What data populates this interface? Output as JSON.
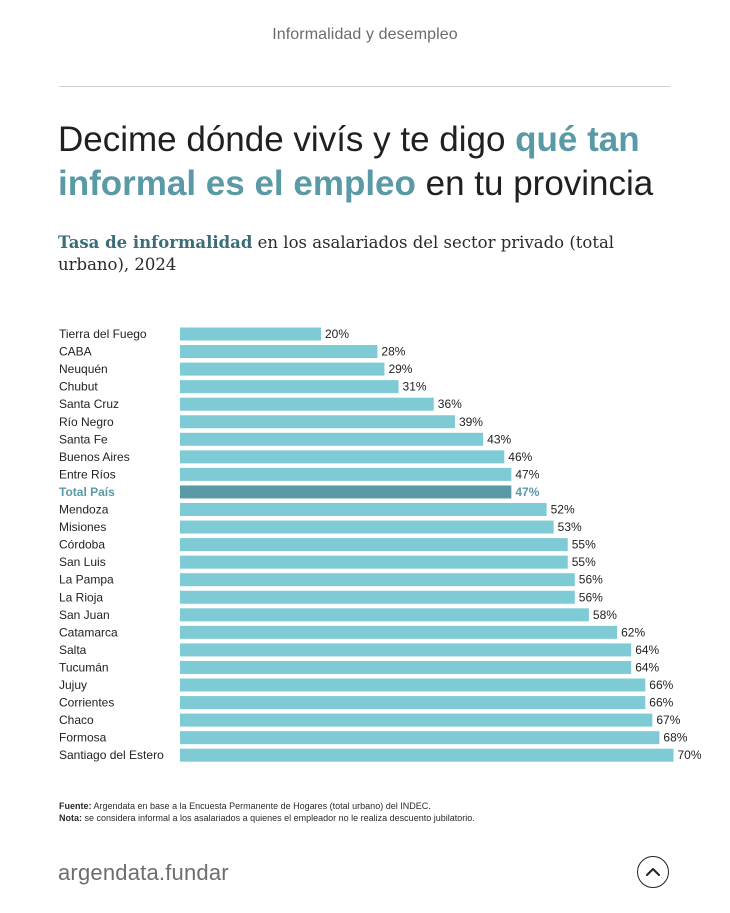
{
  "header": {
    "section": "Informalidad y desempleo"
  },
  "headline": {
    "part1": "Decime dónde vivís y te digo ",
    "highlight": "qué tan informal es el empleo",
    "part2": " en tu provincia"
  },
  "subtitle": {
    "strong": "Tasa de informalidad",
    "rest": " en los asalariados del sector privado (total urbano), 2024"
  },
  "chart_data": {
    "type": "bar",
    "orientation": "horizontal",
    "categories": [
      "Tierra del Fuego",
      "CABA",
      "Neuquén",
      "Chubut",
      "Santa Cruz",
      "Río Negro",
      "Santa Fe",
      "Buenos Aires",
      "Entre Ríos",
      "Total País",
      "Mendoza",
      "Misiones",
      "Córdoba",
      "San Luis",
      "La Pampa",
      "La Rioja",
      "San Juan",
      "Catamarca",
      "Salta",
      "Tucumán",
      "Jujuy",
      "Corrientes",
      "Chaco",
      "Formosa",
      "Santiago del Estero"
    ],
    "values": [
      20,
      28,
      29,
      31,
      36,
      39,
      43,
      46,
      47,
      47,
      52,
      53,
      55,
      55,
      56,
      56,
      58,
      62,
      64,
      64,
      66,
      66,
      67,
      68,
      70
    ],
    "value_labels": [
      "20%",
      "28%",
      "29%",
      "31%",
      "36%",
      "39%",
      "43%",
      "46%",
      "47%",
      "47%",
      "52%",
      "53%",
      "55%",
      "55%",
      "56%",
      "56%",
      "58%",
      "62%",
      "64%",
      "64%",
      "66%",
      "66%",
      "67%",
      "68%",
      "70%"
    ],
    "highlight_category": "Total País",
    "bar_color": "#7ecbd6",
    "highlight_color": "#5a9aa6",
    "xlim": [
      0,
      100
    ],
    "grid": false
  },
  "notes": {
    "source_label": "Fuente:",
    "source_text": " Argendata en base a la Encuesta Permanente de Hogares (total urbano) del INDEC.",
    "note_label": "Nota:",
    "note_text": " se considera informal a los asalariados a quienes el empleador no le realiza descuento jubilatorio."
  },
  "footer": {
    "brand": "argendata.fundar",
    "up_icon": "chevron-up-icon"
  }
}
